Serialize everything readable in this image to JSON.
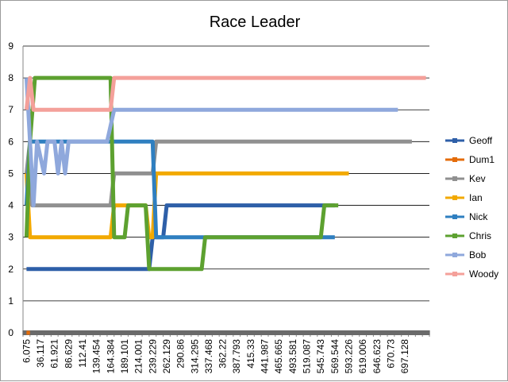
{
  "chart_data": {
    "type": "line",
    "title": "Race Leader",
    "xlabel": "",
    "ylabel": "",
    "ylim": [
      0,
      9
    ],
    "yticks": [
      "0",
      "1",
      "2",
      "3",
      "4",
      "5",
      "6",
      "7",
      "8",
      "9"
    ],
    "x_tick_labels": [
      "6.075",
      "36.117",
      "61.921",
      "86.629",
      "112.41",
      "139.454",
      "164.384",
      "189.101",
      "214.001",
      "239.229",
      "262.129",
      "290.86",
      "314.295",
      "337.468",
      "362.22",
      "387.793",
      "415.33",
      "441.987",
      "465.665",
      "493.581",
      "519.087",
      "545.743",
      "569.544",
      "593.226",
      "619.006",
      "646.623",
      "670.73",
      "697.128"
    ],
    "x_tick_label_indices": [
      0,
      2,
      4,
      6,
      8,
      10,
      12,
      14,
      16,
      18,
      20,
      22,
      24,
      26,
      28,
      30,
      32,
      34,
      36,
      38,
      40,
      42,
      44,
      46,
      48,
      50,
      52,
      54
    ],
    "num_categories": 58,
    "grid": true,
    "legend_position": "right",
    "series": [
      {
        "name": "Geoff",
        "color": "#2E5FA8",
        "end": 44,
        "segments": [
          [
            0,
            2
          ],
          [
            17.5,
            2
          ],
          [
            18,
            3
          ],
          [
            19.5,
            3
          ],
          [
            20,
            4
          ],
          [
            44,
            4
          ]
        ]
      },
      {
        "name": "Dum1",
        "color": "#E46C0A",
        "end": 0.5,
        "segments": [
          [
            0,
            0
          ],
          [
            0.5,
            0
          ]
        ]
      },
      {
        "name": "Kev",
        "color": "#909090",
        "end": 55,
        "segments": [
          [
            0,
            5
          ],
          [
            0.5,
            6
          ],
          [
            0.8,
            4
          ],
          [
            12,
            4
          ],
          [
            12.5,
            5
          ],
          [
            18,
            5
          ],
          [
            18.5,
            6
          ],
          [
            55,
            6
          ]
        ]
      },
      {
        "name": "Ian",
        "color": "#F2A900",
        "end": 46,
        "segments": [
          [
            0,
            5
          ],
          [
            0.5,
            3
          ],
          [
            12,
            3
          ],
          [
            12.5,
            4
          ],
          [
            17,
            4
          ],
          [
            17.5,
            3
          ],
          [
            18,
            3
          ],
          [
            18.5,
            5
          ],
          [
            46,
            5
          ]
        ]
      },
      {
        "name": "Nick",
        "color": "#2F7FC0",
        "end": 44,
        "segments": [
          [
            0,
            4
          ],
          [
            0.5,
            6
          ],
          [
            12,
            6
          ],
          [
            12.5,
            6
          ],
          [
            18,
            6
          ],
          [
            18.5,
            3
          ],
          [
            44,
            3
          ]
        ]
      },
      {
        "name": "Chris",
        "color": "#5DA130",
        "end": 44.5,
        "segments": [
          [
            0,
            3
          ],
          [
            0.5,
            6
          ],
          [
            1.2,
            8
          ],
          [
            12,
            8
          ],
          [
            12.5,
            3
          ],
          [
            14,
            3
          ],
          [
            14.5,
            4
          ],
          [
            17,
            4
          ],
          [
            17.5,
            2
          ],
          [
            25,
            2
          ],
          [
            25.5,
            3
          ],
          [
            42,
            3
          ],
          [
            42.5,
            4
          ],
          [
            44.5,
            4
          ]
        ]
      },
      {
        "name": "Bob",
        "color": "#8FA8DC",
        "end": 53,
        "segments": [
          [
            0,
            8
          ],
          [
            1,
            4
          ],
          [
            1.5,
            6
          ],
          [
            2.5,
            5
          ],
          [
            3,
            6
          ],
          [
            4,
            6
          ],
          [
            4.5,
            5
          ],
          [
            5,
            6
          ],
          [
            5.5,
            5
          ],
          [
            6,
            6
          ],
          [
            11.5,
            6
          ],
          [
            12.5,
            7
          ],
          [
            53,
            7
          ]
        ]
      },
      {
        "name": "Woody",
        "color": "#F4A09A",
        "end": 57,
        "segments": [
          [
            0,
            7
          ],
          [
            0.5,
            8
          ],
          [
            1,
            7
          ],
          [
            12,
            7
          ],
          [
            12.5,
            8
          ],
          [
            57,
            8
          ]
        ]
      }
    ]
  }
}
